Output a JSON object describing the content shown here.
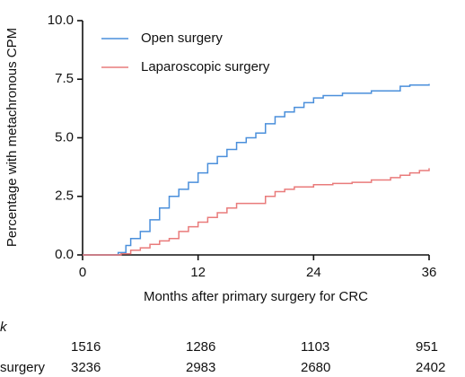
{
  "chart_data": {
    "type": "step",
    "y_label": "Percentage with metachronous CPM",
    "x_label": "Months after primary surgery for CRC",
    "xlim": [
      0,
      36
    ],
    "xticks": [
      0,
      12,
      24,
      36
    ],
    "ylim": [
      0,
      10
    ],
    "yticks": [
      {
        "value": 0,
        "label": "0.0"
      },
      {
        "value": 2.5,
        "label": "2.5"
      },
      {
        "value": 5,
        "label": "5.0"
      },
      {
        "value": 7.5,
        "label": "7.5"
      },
      {
        "value": 10,
        "label": "10.0"
      }
    ],
    "legend": "upper left",
    "series": [
      {
        "name": "Open surgery",
        "color": "#4a8fdb",
        "x": [
          0,
          3.7,
          4.5,
          5,
          6,
          7,
          8,
          9,
          10,
          11,
          12,
          13,
          14,
          15,
          16,
          17,
          18,
          19,
          20,
          21,
          22,
          23,
          24,
          25,
          27,
          30,
          33,
          34,
          36
        ],
        "values": [
          0,
          0.1,
          0.4,
          0.7,
          1.0,
          1.5,
          2.0,
          2.5,
          2.8,
          3.1,
          3.5,
          3.9,
          4.2,
          4.5,
          4.8,
          5.0,
          5.2,
          5.6,
          5.9,
          6.1,
          6.3,
          6.5,
          6.7,
          6.8,
          6.9,
          7.0,
          7.2,
          7.25,
          7.3
        ]
      },
      {
        "name": "Laparoscopic surgery",
        "color": "#e97b7b",
        "x": [
          0,
          4,
          5,
          6,
          7,
          8,
          9,
          10,
          11,
          12,
          13,
          14,
          15,
          16,
          18,
          19,
          20,
          21,
          22,
          24,
          26,
          28,
          30,
          32,
          33,
          34,
          35,
          36
        ],
        "values": [
          0,
          0.05,
          0.2,
          0.3,
          0.45,
          0.6,
          0.7,
          1.0,
          1.2,
          1.4,
          1.6,
          1.8,
          2.0,
          2.2,
          2.2,
          2.5,
          2.7,
          2.8,
          2.9,
          3.0,
          3.05,
          3.1,
          3.2,
          3.3,
          3.4,
          3.5,
          3.6,
          3.7
        ]
      }
    ]
  },
  "risk_table": {
    "title": "k",
    "rows": [
      {
        "values": [
          "1516",
          "1286",
          "1103",
          "951"
        ]
      },
      {
        "label": "surgery",
        "values": [
          "3236",
          "2983",
          "2680",
          "2402"
        ]
      }
    ]
  }
}
